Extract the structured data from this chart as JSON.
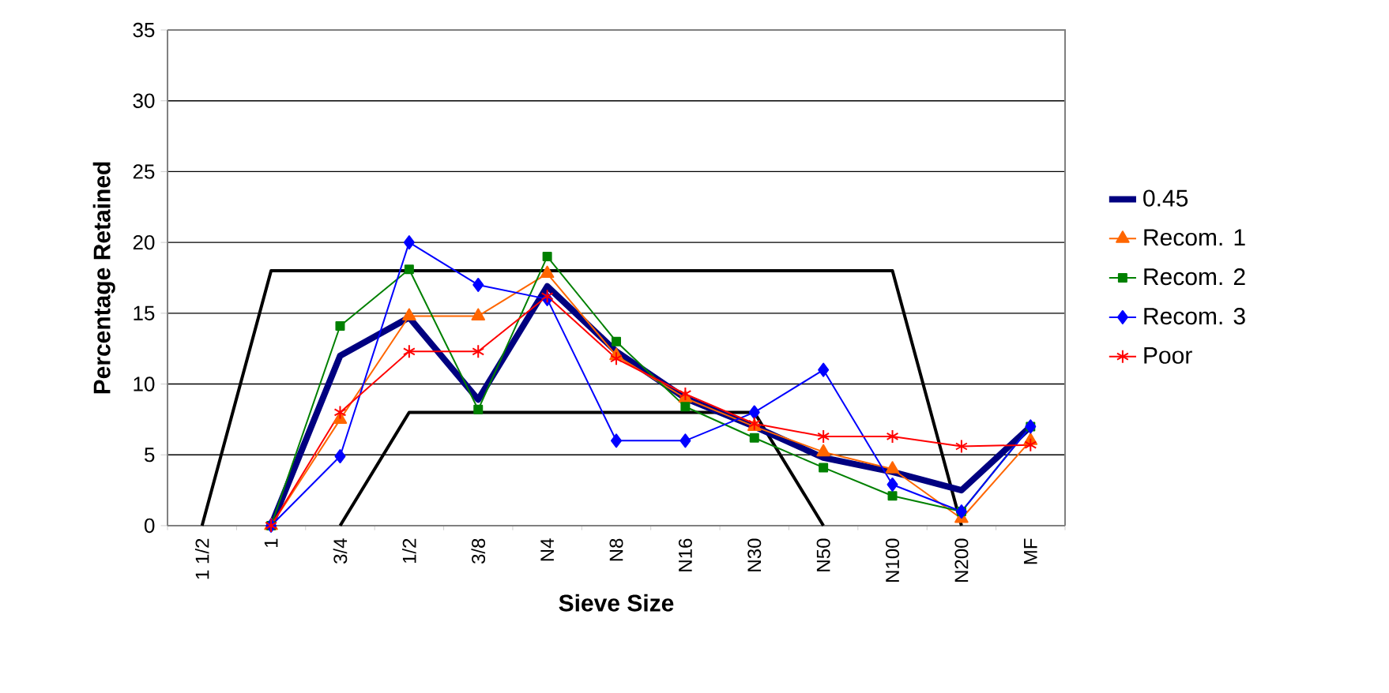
{
  "chart_data": {
    "type": "line",
    "xlabel": "Sieve Size",
    "ylabel": "Percentage Retained",
    "categories": [
      "1 1/2",
      "1",
      "3/4",
      "1/2",
      "3/8",
      "N4",
      "N8",
      "N16",
      "N30",
      "N50",
      "N100",
      "N200",
      "MF"
    ],
    "series": [
      {
        "color": "#000000",
        "marker": "none",
        "values": [
          0,
          18,
          18,
          18,
          18,
          18,
          18,
          18,
          18,
          18,
          18,
          0,
          null
        ]
      },
      {
        "color": "#000000",
        "marker": "none",
        "values": [
          null,
          null,
          0,
          8,
          8,
          8,
          8,
          8,
          8,
          0,
          null,
          null,
          null
        ]
      },
      {
        "name": "0.45",
        "color": "#000080",
        "marker": "none",
        "values": [
          null,
          0,
          12,
          14.7,
          8.9,
          16.9,
          12.3,
          9,
          7,
          4.8,
          3.8,
          2.5,
          7
        ]
      },
      {
        "name": "Recom. 1",
        "color": "#ff6600",
        "marker": "triangle",
        "values": [
          null,
          0,
          7.5,
          14.8,
          14.8,
          17.8,
          12,
          9,
          7,
          5.2,
          4,
          0.5,
          6
        ]
      },
      {
        "name": "Recom. 2",
        "color": "#008000",
        "marker": "square",
        "values": [
          null,
          0,
          14.1,
          18.1,
          8.2,
          19,
          13,
          8.4,
          6.2,
          4.1,
          2.1,
          1,
          7
        ]
      },
      {
        "name": "Recom. 3",
        "color": "#0000ff",
        "marker": "diamond",
        "values": [
          null,
          0,
          4.9,
          20,
          17,
          16,
          6,
          6,
          8,
          11,
          2.9,
          1,
          7
        ]
      },
      {
        "name": "Poor",
        "color": "#ff0000",
        "marker": "cross",
        "values": [
          null,
          0,
          8,
          12.3,
          12.3,
          16.2,
          11.8,
          9.3,
          7.2,
          6.3,
          6.3,
          5.6,
          5.7
        ]
      }
    ],
    "ylim": [
      0,
      35
    ],
    "yticks": [
      0,
      5,
      10,
      15,
      20,
      25,
      30,
      35
    ],
    "grid": "y",
    "legend": "right"
  }
}
